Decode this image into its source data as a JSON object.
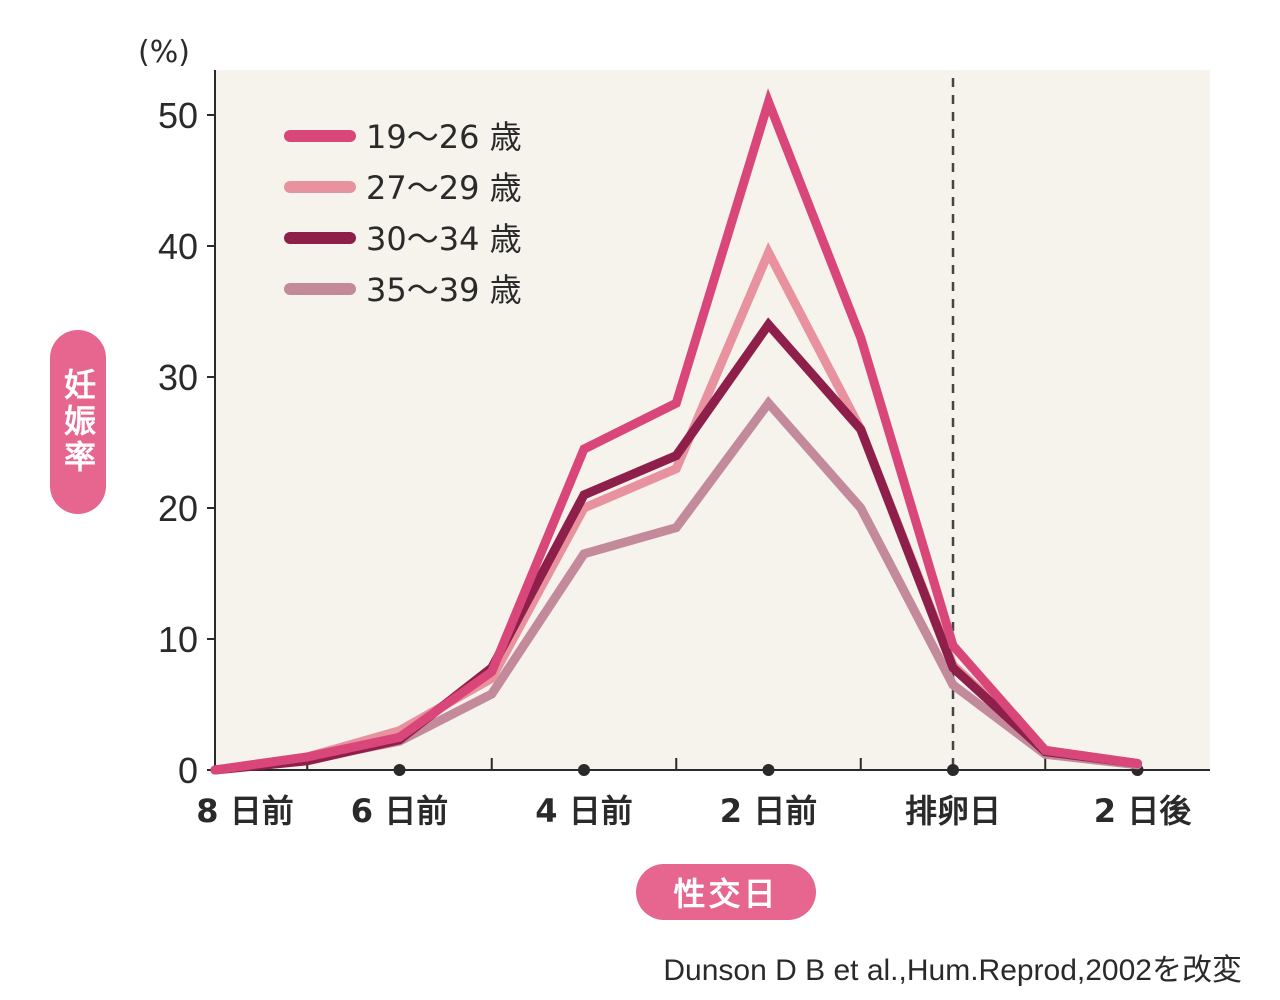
{
  "chart_data": {
    "type": "line",
    "unit": "(%)",
    "ylabel": "妊娠率",
    "xlabel": "性交日",
    "ylim": [
      0,
      55
    ],
    "yticks": [
      0,
      10,
      20,
      30,
      40,
      50
    ],
    "x": [
      -8,
      -7,
      -6,
      -5,
      -4,
      -3,
      -2,
      -1,
      0,
      1,
      2
    ],
    "x_tick_labels": [
      {
        "x": -8,
        "label": "8 日前"
      },
      {
        "x": -6,
        "label": "6 日前"
      },
      {
        "x": -4,
        "label": "4 日前"
      },
      {
        "x": -2,
        "label": "2 日前"
      },
      {
        "x": 0,
        "label": "排卵日"
      },
      {
        "x": 2,
        "label": "2 日後"
      }
    ],
    "ovulation_x": 0,
    "series": [
      {
        "name": "19〜26 歳",
        "color": "#d9467a",
        "values": [
          0,
          1,
          2.5,
          7.5,
          24.5,
          28,
          51,
          33,
          9.5,
          1.5,
          0.5
        ]
      },
      {
        "name": "27〜29 歳",
        "color": "#e8929f",
        "values": [
          0,
          1,
          3,
          7,
          20,
          23,
          39.5,
          26,
          8,
          1.5,
          0.5
        ]
      },
      {
        "name": "30〜34 歳",
        "color": "#8e1f4a",
        "values": [
          0,
          0.7,
          2.3,
          7.8,
          21,
          24,
          34,
          26,
          7.8,
          1.4,
          0.5
        ]
      },
      {
        "name": "35〜39 歳",
        "color": "#c38a9b",
        "values": [
          0,
          0.8,
          2.2,
          5.8,
          16.5,
          18.5,
          28,
          20,
          6.5,
          1.2,
          0.4
        ]
      }
    ],
    "grid": false,
    "legend_position": "top-left"
  },
  "source": "Dunson D B et al.,Hum.Reprod,2002を改変",
  "colors": {
    "plot_background": "#f6f2ec",
    "pill": "#e6668f",
    "axis": "#2a2a2a"
  }
}
